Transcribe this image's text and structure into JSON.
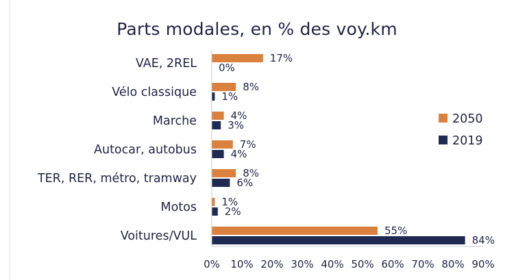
{
  "chart_data": {
    "type": "bar",
    "orientation": "horizontal",
    "title": "Parts modales, en % des voy.km",
    "categories": [
      "VAE, 2REL",
      "Vélo classique",
      "Marche",
      "Autocar, autobus",
      "TER, RER, métro, tramway",
      "Motos",
      "Voitures/VUL"
    ],
    "series": [
      {
        "name": "2050",
        "values": [
          17,
          8,
          4,
          7,
          8,
          1,
          55
        ],
        "labels": [
          "17%",
          "8%",
          "4%",
          "7%",
          "8%",
          "1%",
          "55%"
        ],
        "color": "#d9813d"
      },
      {
        "name": "2019",
        "values": [
          0,
          1,
          3,
          4,
          6,
          2,
          84
        ],
        "labels": [
          "0%",
          "1%",
          "3%",
          "4%",
          "6%",
          "2%",
          "84%"
        ],
        "color": "#1f2a52"
      }
    ],
    "xlim": [
      0,
      90
    ],
    "xticks": [
      0,
      10,
      20,
      30,
      40,
      50,
      60,
      70,
      80,
      90
    ],
    "xtick_labels": [
      "0%",
      "10%",
      "20%",
      "30%",
      "40%",
      "50%",
      "60%",
      "70%",
      "80%",
      "90%"
    ],
    "grid": false,
    "legend": {
      "position": "right",
      "items": [
        "2050",
        "2019"
      ]
    },
    "colors": {
      "text": "#1f2344",
      "axis": "#c8c8c8"
    }
  }
}
